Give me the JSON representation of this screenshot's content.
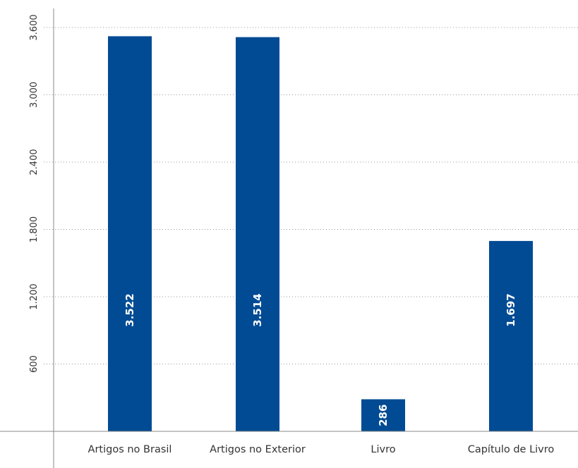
{
  "chart_data": {
    "type": "bar",
    "title": "",
    "xlabel": "",
    "ylabel": "",
    "categories": [
      "Artigos no Brasil",
      "Artigos no Exterior",
      "Livro",
      "Capítulo de Livro"
    ],
    "values": [
      3522,
      3514,
      286,
      1697
    ],
    "value_labels": [
      "3.522",
      "3.514",
      "286",
      "1.697"
    ],
    "ylim": [
      0,
      3600
    ],
    "yticks": [
      600,
      1200,
      1800,
      2400,
      3000,
      3600
    ],
    "ytick_labels": [
      "600",
      "1.200",
      "1.800",
      "2.400",
      "3.000",
      "3.600"
    ],
    "grid": true,
    "bar_color": "#004b93",
    "legend": "none"
  }
}
